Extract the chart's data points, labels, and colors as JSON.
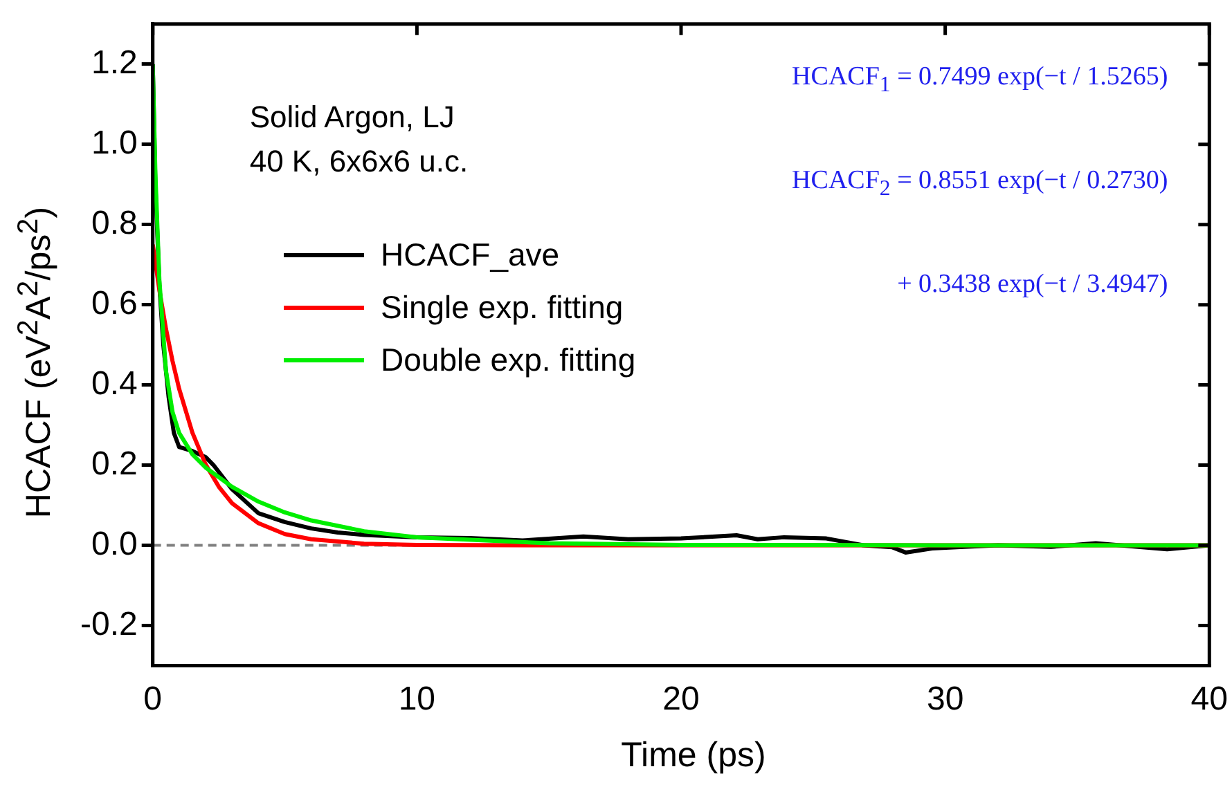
{
  "chart_data": {
    "type": "line",
    "xlabel": "Time (ps)",
    "ylabel": "HCACF (eV$^{2}$A$^{2}$/ps$^{2}$)",
    "xlim": [
      0,
      40
    ],
    "xticks": [
      0,
      10,
      20,
      30,
      40
    ],
    "ylim": [
      -0.3,
      1.3
    ],
    "yticks": [
      -0.2,
      {
        "value": 0,
        "label": "0.0"
      },
      0.2,
      0.4,
      0.6,
      0.8,
      {
        "value": 1,
        "label": "1.0"
      },
      1.2
    ],
    "grid": false,
    "legend": "top left",
    "marker": "none",
    "line_style": "solid",
    "series": [
      {
        "name": "HCACF_ave",
        "color": "#000000",
        "x": [
          0,
          0.1,
          0.25,
          0.4,
          0.6,
          0.8,
          1,
          1.5,
          2,
          2.3,
          3,
          4,
          5,
          6,
          7,
          8,
          10,
          12,
          14,
          16.3,
          18,
          20,
          22.1,
          22.9,
          23.9,
          25.5,
          26.9,
          28,
          28.5,
          29.5,
          30.7,
          32,
          34,
          35.7,
          37,
          38.4,
          40
        ],
        "values": [
          1.2,
          0.9,
          0.65,
          0.5,
          0.37,
          0.28,
          0.245,
          0.235,
          0.22,
          0.2,
          0.14,
          0.08,
          0.058,
          0.042,
          0.032,
          0.026,
          0.02,
          0.018,
          0.012,
          0.022,
          0.015,
          0.017,
          0.025,
          0.015,
          0.02,
          0.017,
          0,
          -0.005,
          -0.018,
          -0.008,
          -0.004,
          0,
          -0.004,
          0.005,
          -0.002,
          -0.01,
          0
        ]
      },
      {
        "name": "Single exp. fitting",
        "color": "#ff0000",
        "x": [
          0,
          0.25,
          0.5,
          0.75,
          1,
          1.5,
          2,
          2.5,
          3,
          4,
          5,
          6,
          8,
          10,
          15,
          20,
          30,
          40
        ],
        "values": [
          0.75,
          0.637,
          0.54,
          0.459,
          0.39,
          0.281,
          0.202,
          0.146,
          0.105,
          0.055,
          0.028,
          0.015,
          0.004,
          0.001,
          0,
          0,
          0,
          0
        ]
      },
      {
        "name": "Double exp. fitting",
        "color": "#00ee00",
        "x": [
          0,
          0.1,
          0.25,
          0.5,
          0.75,
          1,
          1.5,
          2,
          3,
          4,
          5,
          6,
          8,
          10,
          15,
          20,
          30,
          40
        ],
        "values": [
          1.199,
          0.927,
          0.662,
          0.435,
          0.332,
          0.28,
          0.227,
          0.194,
          0.146,
          0.109,
          0.082,
          0.062,
          0.035,
          0.02,
          0.005,
          0.001,
          0,
          0
        ]
      }
    ],
    "ref_lines": [
      {
        "axis": "y",
        "value": 0,
        "color": "#808080",
        "line_style": "dashed"
      }
    ],
    "annotations": [
      "Solid Argon, LJ",
      "40 K, 6x6x6 u.c.",
      "HCACF$_{1}$ = 0.7499 exp(−t / 1.5265)",
      "HCACF$_{2}$ = 0.8551 exp(−t / 0.2730)",
      "+ 0.3438 exp(−t / 3.4947)"
    ]
  }
}
